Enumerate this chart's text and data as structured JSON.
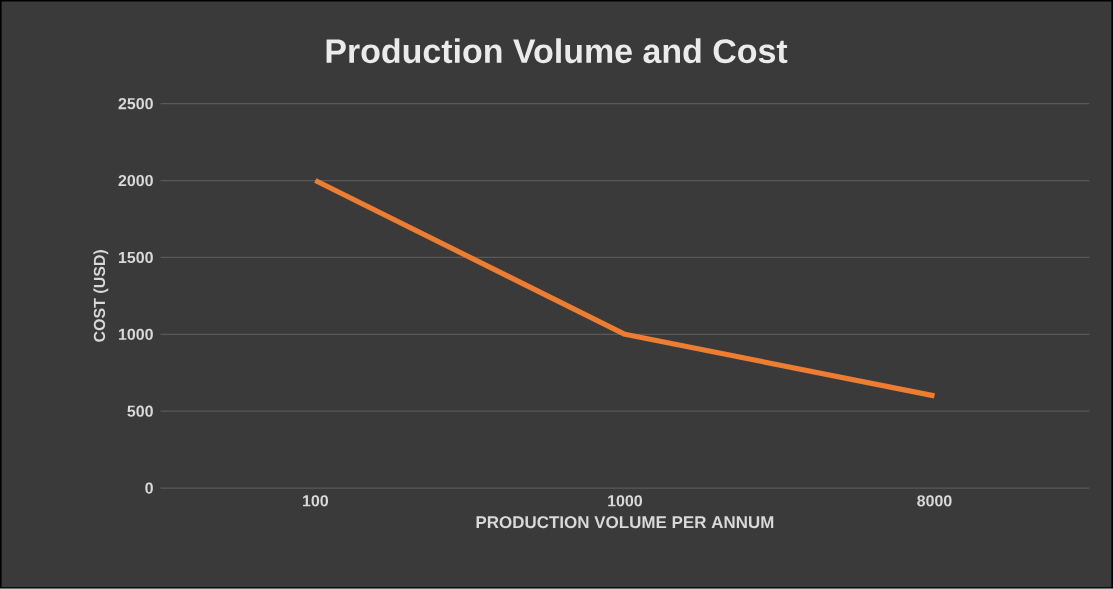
{
  "chart_data": {
    "type": "line",
    "title": "Production Volume and Cost",
    "xlabel": "PRODUCTION VOLUME PER ANNUM",
    "ylabel": "COST (USD)",
    "categories": [
      "100",
      "1000",
      "8000"
    ],
    "series": [
      {
        "color": "#ed7d31",
        "values": [
          2000,
          1000,
          600
        ]
      }
    ],
    "ylim": [
      0,
      2500
    ],
    "yticks": [
      0,
      500,
      1000,
      1500,
      2000,
      2500
    ],
    "grid": "y"
  }
}
